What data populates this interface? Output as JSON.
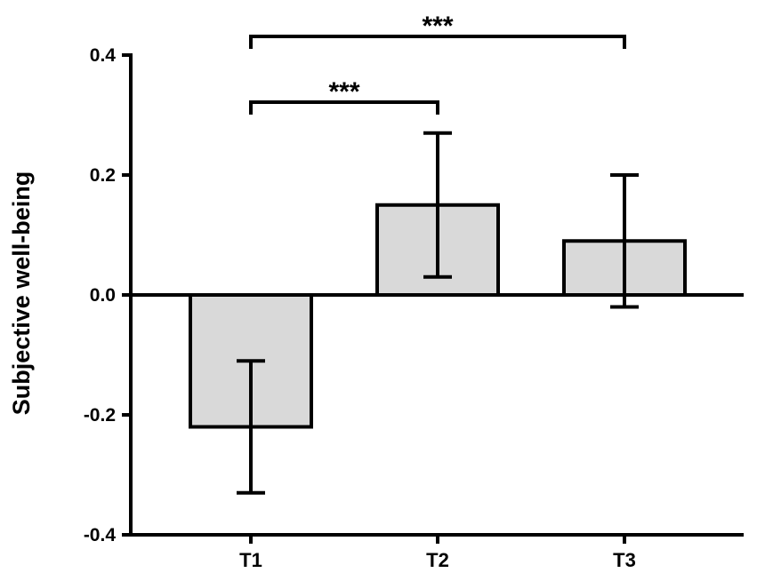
{
  "chart_data": {
    "type": "bar",
    "title": "",
    "xlabel": "",
    "ylabel": "Subjective well-being",
    "ylim": [
      -0.4,
      0.4
    ],
    "yticks": [
      0.4,
      0.2,
      0.0,
      -0.2,
      -0.4
    ],
    "ytick_labels": [
      "0.4",
      "0.2",
      "0.0",
      "-0.2",
      "-0.4"
    ],
    "categories": [
      "T1",
      "T2",
      "T3"
    ],
    "values": [
      -0.22,
      0.15,
      0.09
    ],
    "error_low": [
      -0.33,
      0.03,
      -0.02
    ],
    "error_high": [
      -0.11,
      0.27,
      0.2
    ],
    "grid": false,
    "colors": {
      "bar_fill": "#d9d9d9",
      "stroke": "#000000",
      "background": "#ffffff"
    },
    "significance": [
      {
        "from": "T1",
        "to": "T2",
        "label": "***"
      },
      {
        "from": "T1",
        "to": "T3",
        "label": "***"
      }
    ]
  }
}
